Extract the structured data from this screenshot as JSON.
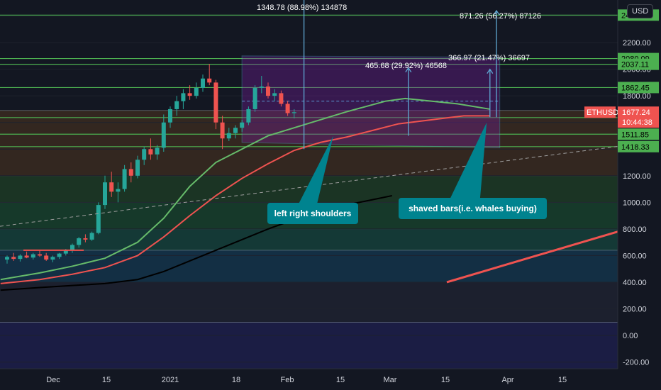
{
  "currency_label": "USD",
  "symbol": "ETHUSD",
  "last_price": "1677.24",
  "countdown": "10:44:38",
  "colors": {
    "background": "#131722",
    "grid": "#1e222d",
    "axis_text": "#d1d4dc",
    "support_line": "#4caf50",
    "resistance_line": "#ef5350",
    "up_candle": "#26a69a",
    "down_candle": "#ef5350",
    "ema_fast": "#66bb6a",
    "ema_mid": "#ef5350",
    "ema_slow": "#000000",
    "box_border": "#5b9bd5",
    "callout_bg": "#00838f",
    "arrow": "#5fa8d3"
  },
  "chart_data": {
    "type": "candlestick",
    "x_axis": {
      "ticks": [
        "Dec",
        "15",
        "2021",
        "18",
        "Feb",
        "15",
        "Mar",
        "15",
        "Apr",
        "15"
      ]
    },
    "y_axis": {
      "ticks": [
        -200,
        0,
        200,
        400,
        600,
        800,
        1000,
        1200,
        1400,
        1600,
        1800,
        2000,
        2200,
        2400
      ]
    },
    "price_range": [
      -250,
      2520
    ],
    "horizontal_levels": [
      {
        "value": 2406.47,
        "label": "2406.47",
        "color": "#4caf50"
      },
      {
        "value": 2080.09,
        "label": "2080.09",
        "color": "#4caf50"
      },
      {
        "value": 2037.11,
        "label": "2037.11",
        "color": "#4caf50"
      },
      {
        "value": 1862.45,
        "label": "1862.45",
        "color": "#4caf50"
      },
      {
        "value": 1636.74,
        "label": "1636.74",
        "color": "#4caf50"
      },
      {
        "value": 1511.85,
        "label": "1511.85",
        "color": "#4caf50"
      },
      {
        "value": 1418.33,
        "label": "1418.33",
        "color": "#4caf50"
      }
    ],
    "zone_lines": [
      1690,
      1200,
      1000,
      800,
      640,
      400,
      100
    ],
    "measurements": [
      {
        "label": "1348.78 (88.98%) 134878"
      },
      {
        "label": "871.26 (56.27%) 87126"
      },
      {
        "label": "465.68 (29.92%) 46568"
      },
      {
        "label": "366.97 (21.47%) 36697"
      }
    ],
    "annotations": [
      {
        "text": "left right shoulders"
      },
      {
        "text": "shaved bars(i.e. whales buying)"
      }
    ],
    "candles": [
      {
        "day": 0,
        "o": 570,
        "h": 600,
        "l": 540,
        "c": 590
      },
      {
        "day": 2,
        "o": 590,
        "h": 620,
        "l": 560,
        "c": 575
      },
      {
        "day": 4,
        "o": 575,
        "h": 610,
        "l": 555,
        "c": 600
      },
      {
        "day": 6,
        "o": 600,
        "h": 630,
        "l": 580,
        "c": 585
      },
      {
        "day": 8,
        "o": 585,
        "h": 620,
        "l": 570,
        "c": 610
      },
      {
        "day": 10,
        "o": 610,
        "h": 640,
        "l": 590,
        "c": 600
      },
      {
        "day": 12,
        "o": 600,
        "h": 620,
        "l": 560,
        "c": 570
      },
      {
        "day": 14,
        "o": 570,
        "h": 600,
        "l": 550,
        "c": 590
      },
      {
        "day": 16,
        "o": 590,
        "h": 620,
        "l": 575,
        "c": 615
      },
      {
        "day": 18,
        "o": 615,
        "h": 650,
        "l": 600,
        "c": 640
      },
      {
        "day": 20,
        "o": 640,
        "h": 690,
        "l": 620,
        "c": 680
      },
      {
        "day": 22,
        "o": 680,
        "h": 740,
        "l": 660,
        "c": 730
      },
      {
        "day": 24,
        "o": 730,
        "h": 760,
        "l": 700,
        "c": 720
      },
      {
        "day": 26,
        "o": 720,
        "h": 780,
        "l": 710,
        "c": 770
      },
      {
        "day": 28,
        "o": 770,
        "h": 1000,
        "l": 760,
        "c": 980
      },
      {
        "day": 30,
        "o": 980,
        "h": 1200,
        "l": 950,
        "c": 1150
      },
      {
        "day": 32,
        "o": 1150,
        "h": 1230,
        "l": 1040,
        "c": 1080
      },
      {
        "day": 34,
        "o": 1080,
        "h": 1150,
        "l": 1000,
        "c": 1100
      },
      {
        "day": 36,
        "o": 1100,
        "h": 1280,
        "l": 1080,
        "c": 1250
      },
      {
        "day": 38,
        "o": 1250,
        "h": 1300,
        "l": 1150,
        "c": 1200
      },
      {
        "day": 40,
        "o": 1200,
        "h": 1350,
        "l": 1180,
        "c": 1320
      },
      {
        "day": 42,
        "o": 1320,
        "h": 1420,
        "l": 1280,
        "c": 1400
      },
      {
        "day": 44,
        "o": 1400,
        "h": 1480,
        "l": 1320,
        "c": 1360
      },
      {
        "day": 46,
        "o": 1360,
        "h": 1430,
        "l": 1320,
        "c": 1410
      },
      {
        "day": 48,
        "o": 1410,
        "h": 1660,
        "l": 1380,
        "c": 1600
      },
      {
        "day": 50,
        "o": 1600,
        "h": 1720,
        "l": 1560,
        "c": 1700
      },
      {
        "day": 52,
        "o": 1700,
        "h": 1800,
        "l": 1650,
        "c": 1760
      },
      {
        "day": 54,
        "o": 1760,
        "h": 1850,
        "l": 1700,
        "c": 1820
      },
      {
        "day": 56,
        "o": 1820,
        "h": 1880,
        "l": 1770,
        "c": 1800
      },
      {
        "day": 58,
        "o": 1800,
        "h": 1900,
        "l": 1780,
        "c": 1860
      },
      {
        "day": 60,
        "o": 1860,
        "h": 1960,
        "l": 1830,
        "c": 1930
      },
      {
        "day": 62,
        "o": 1930,
        "h": 2040,
        "l": 1880,
        "c": 1900
      },
      {
        "day": 64,
        "o": 1900,
        "h": 1920,
        "l": 1550,
        "c": 1600
      },
      {
        "day": 66,
        "o": 1600,
        "h": 1650,
        "l": 1400,
        "c": 1480
      },
      {
        "day": 68,
        "o": 1480,
        "h": 1560,
        "l": 1460,
        "c": 1520
      },
      {
        "day": 70,
        "o": 1520,
        "h": 1580,
        "l": 1480,
        "c": 1560
      },
      {
        "day": 72,
        "o": 1560,
        "h": 1620,
        "l": 1530,
        "c": 1600
      },
      {
        "day": 74,
        "o": 1600,
        "h": 1720,
        "l": 1580,
        "c": 1700
      },
      {
        "day": 76,
        "o": 1700,
        "h": 1880,
        "l": 1680,
        "c": 1860
      },
      {
        "day": 78,
        "o": 1860,
        "h": 1950,
        "l": 1820,
        "c": 1870
      },
      {
        "day": 80,
        "o": 1870,
        "h": 1900,
        "l": 1780,
        "c": 1800
      },
      {
        "day": 82,
        "o": 1800,
        "h": 1850,
        "l": 1760,
        "c": 1820
      },
      {
        "day": 84,
        "o": 1820,
        "h": 1840,
        "l": 1720,
        "c": 1740
      },
      {
        "day": 86,
        "o": 1740,
        "h": 1760,
        "l": 1650,
        "c": 1670
      },
      {
        "day": 88,
        "o": 1670,
        "h": 1700,
        "l": 1630,
        "c": 1677
      }
    ]
  }
}
